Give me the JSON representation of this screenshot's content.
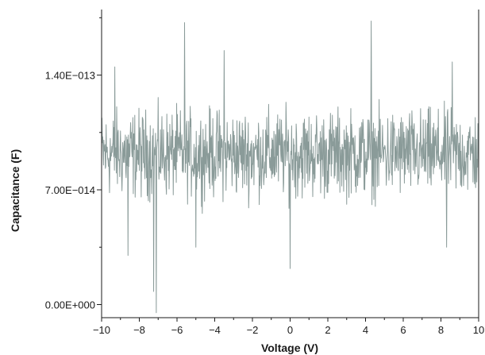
{
  "chart_data": {
    "type": "line",
    "title": "",
    "xlabel": "Voltage (V)",
    "ylabel": "Capacitance (F)",
    "xlim": [
      -10,
      10
    ],
    "ylim": [
      -8e-15,
      1.8e-13
    ],
    "x_ticks": [
      -10,
      -8,
      -6,
      -4,
      -2,
      0,
      2,
      4,
      6,
      8,
      10
    ],
    "x_tick_labels": [
      "−10",
      "−8",
      "−6",
      "−4",
      "−2",
      "0",
      "2",
      "4",
      "6",
      "8",
      "10"
    ],
    "y_ticks": [
      0,
      7e-14,
      1.4e-13
    ],
    "y_tick_labels": [
      "0.00E+000",
      "7.00E−014",
      "1.40E−013"
    ],
    "grid": false,
    "line_color": "#8a9b99",
    "series": [
      {
        "name": "",
        "baseline": 9.2e-14,
        "noise_amplitude": 2.4e-14,
        "x_step": 0.02,
        "spikes": [
          {
            "x": -7.1,
            "y": -5e-15
          },
          {
            "x": -7.25,
            "y": 8e-15
          },
          {
            "x": -5.6,
            "y": 1.72e-13
          },
          {
            "x": -3.5,
            "y": 1.55e-13
          },
          {
            "x": 4.3,
            "y": 1.73e-13
          },
          {
            "x": -9.3,
            "y": 1.45e-13
          },
          {
            "x": -8.6,
            "y": 3e-14
          },
          {
            "x": -5.0,
            "y": 3.5e-14
          },
          {
            "x": 0.0,
            "y": 2.2e-14
          },
          {
            "x": 8.3,
            "y": 3.5e-14
          },
          {
            "x": 8.6,
            "y": 1.48e-13
          }
        ]
      }
    ]
  }
}
